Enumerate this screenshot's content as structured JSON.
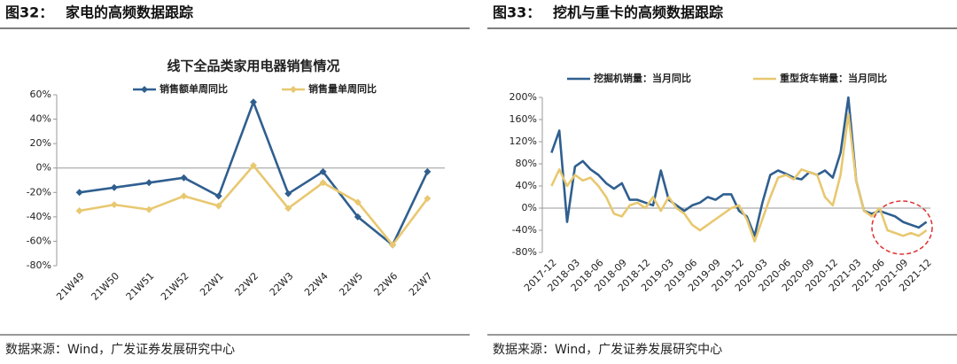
{
  "figures": [
    {
      "label": "图32：",
      "caption": "家电的高频数据跟踪",
      "source": "数据来源：Wind，广发证券发展研究中心"
    },
    {
      "label": "图33：",
      "caption": "挖机与重卡的高频数据跟踪",
      "source": "数据来源：Wind，广发证券发展研究中心"
    }
  ],
  "chart_data": [
    {
      "type": "line",
      "title": "线下全品类家用电器销售情况",
      "categories": [
        "21W49",
        "21W50",
        "21W51",
        "21W52",
        "22W1",
        "22W2",
        "22W3",
        "22W4",
        "22W5",
        "22W6",
        "22W7"
      ],
      "series": [
        {
          "name": "销售额单周同比",
          "color": "#2f5f8f",
          "values": [
            -20,
            -16,
            -12,
            -8,
            -23,
            54,
            -21,
            -3,
            -40,
            -63,
            -3
          ]
        },
        {
          "name": "销售量单周同比",
          "color": "#e8c870",
          "values": [
            -35,
            -30,
            -34,
            -23,
            -31,
            2,
            -33,
            -12,
            -28,
            -63,
            -25
          ]
        }
      ],
      "ylim": [
        -80,
        60
      ],
      "yticks": [
        {
          "value": -80,
          "label": "-80%"
        },
        {
          "value": -60,
          "label": "-60%"
        },
        {
          "value": -40,
          "label": "-40%"
        },
        {
          "value": -20,
          "label": "-20%"
        },
        {
          "value": 0,
          "label": "0%"
        },
        {
          "value": 20,
          "label": "20%"
        },
        {
          "value": 40,
          "label": "40%"
        },
        {
          "value": 60,
          "label": "60%"
        }
      ],
      "markers": true,
      "legend": "top"
    },
    {
      "type": "line",
      "categories": [
        "2017-12",
        null,
        null,
        "2018-03",
        null,
        null,
        "2018-06",
        null,
        null,
        "2018-09",
        null,
        null,
        "2018-12",
        null,
        null,
        "2019-03",
        null,
        null,
        "2019-06",
        null,
        null,
        "2019-09",
        null,
        null,
        "2019-12",
        null,
        null,
        "2020-03",
        null,
        null,
        "2020-06",
        null,
        null,
        "2020-09",
        null,
        null,
        "2020-12",
        null,
        null,
        "2021-03",
        null,
        null,
        "2021-06",
        null,
        null,
        "2021-09",
        null,
        null,
        "2021-12"
      ],
      "series": [
        {
          "name": "挖掘机销量：当月同比",
          "color": "#2f5f8f",
          "values": [
            100,
            140,
            -25,
            75,
            85,
            70,
            60,
            45,
            35,
            45,
            15,
            15,
            10,
            5,
            68,
            15,
            5,
            -5,
            5,
            10,
            20,
            15,
            25,
            25,
            -5,
            -15,
            -50,
            10,
            60,
            68,
            62,
            55,
            52,
            65,
            60,
            68,
            55,
            100,
            200,
            50,
            -5,
            -10,
            -5,
            -10,
            -15,
            -25,
            -30,
            -35,
            -25
          ]
        },
        {
          "name": "重型货车销量：当月同比",
          "color": "#e8c870",
          "values": [
            40,
            70,
            40,
            60,
            50,
            55,
            40,
            20,
            -10,
            -15,
            5,
            10,
            0,
            20,
            -5,
            20,
            0,
            -10,
            -30,
            -40,
            -30,
            -20,
            -10,
            0,
            5,
            -20,
            -60,
            -20,
            20,
            55,
            60,
            52,
            70,
            65,
            60,
            20,
            5,
            60,
            170,
            50,
            -5,
            -15,
            0,
            -40,
            -45,
            -50,
            -45,
            -50,
            -40
          ]
        }
      ],
      "ylim": [
        -80,
        200
      ],
      "yticks": [
        {
          "value": -80,
          "label": "-80%"
        },
        {
          "value": -40,
          "label": "-40%"
        },
        {
          "value": 0,
          "label": "0%"
        },
        {
          "value": 40,
          "label": "40%"
        },
        {
          "value": 80,
          "label": "80%"
        },
        {
          "value": 120,
          "label": "120%"
        },
        {
          "value": 160,
          "label": "160%"
        },
        {
          "value": 200,
          "label": "200%"
        }
      ],
      "markers": false,
      "legend": "top"
    }
  ]
}
